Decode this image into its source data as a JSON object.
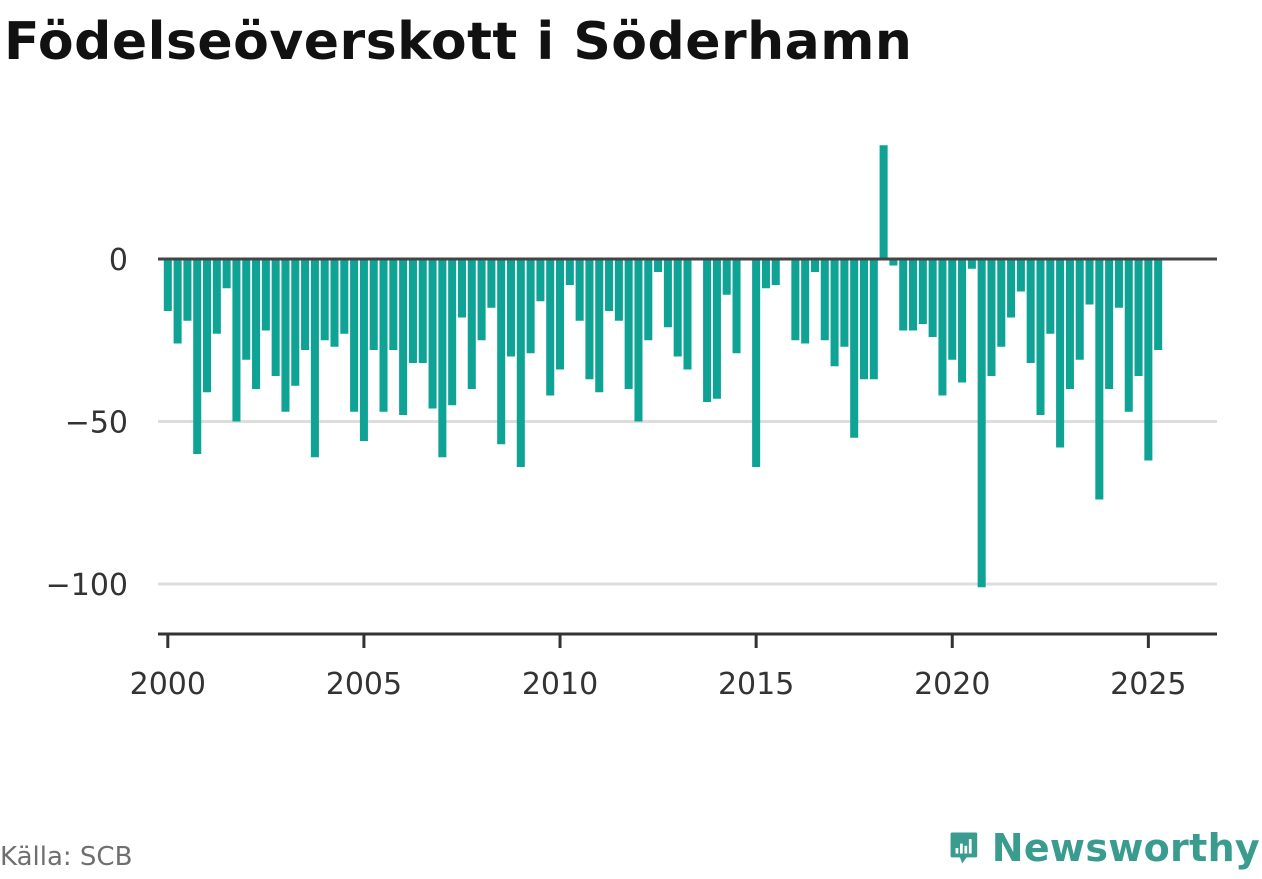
{
  "header": {
    "title": "Födelseöverskott i Söderhamn"
  },
  "footer": {
    "source": "Källa: SCB",
    "brand_name": "Newsworthy"
  },
  "colors": {
    "bar": "#0fa396",
    "brand": "#3a9b8f",
    "zero_line": "#444444",
    "grid": "#dddddd",
    "axis": "#333333"
  },
  "icons": {
    "brand_logo": "bar-chart-speech-bubble-icon"
  },
  "chart_data": {
    "type": "bar",
    "title": "Födelseöverskott i Söderhamn",
    "xlabel": "",
    "ylabel": "",
    "grid": true,
    "x_unit": "quarter",
    "xlim": [
      1999.75,
      2026.75
    ],
    "ylim": [
      -115,
      40
    ],
    "x_ticks": [
      2000,
      2005,
      2010,
      2015,
      2020,
      2025
    ],
    "x_tick_labels": [
      "2000",
      "2005",
      "2010",
      "2015",
      "2020",
      "2025"
    ],
    "y_ticks": [
      0,
      -50,
      -100
    ],
    "y_tick_labels": [
      "0",
      "−50",
      "−100"
    ],
    "x": [
      2000.0,
      2000.25,
      2000.5,
      2000.75,
      2001.0,
      2001.25,
      2001.5,
      2001.75,
      2002.0,
      2002.25,
      2002.5,
      2002.75,
      2003.0,
      2003.25,
      2003.5,
      2003.75,
      2004.0,
      2004.25,
      2004.5,
      2004.75,
      2005.0,
      2005.25,
      2005.5,
      2005.75,
      2006.0,
      2006.25,
      2006.5,
      2006.75,
      2007.0,
      2007.25,
      2007.5,
      2007.75,
      2008.0,
      2008.25,
      2008.5,
      2008.75,
      2009.0,
      2009.25,
      2009.5,
      2009.75,
      2010.0,
      2010.25,
      2010.5,
      2010.75,
      2011.0,
      2011.25,
      2011.5,
      2011.75,
      2012.0,
      2012.25,
      2012.5,
      2012.75,
      2013.0,
      2013.25,
      2013.5,
      2013.75,
      2014.0,
      2014.25,
      2014.5,
      2014.75,
      2015.0,
      2015.25,
      2015.5,
      2015.75,
      2016.0,
      2016.25,
      2016.5,
      2016.75,
      2017.0,
      2017.25,
      2017.5,
      2017.75,
      2018.0,
      2018.25,
      2018.5,
      2018.75,
      2019.0,
      2019.25,
      2019.5,
      2019.75,
      2020.0,
      2020.25,
      2020.5,
      2020.75,
      2021.0,
      2021.25,
      2021.5,
      2021.75,
      2022.0,
      2022.25,
      2022.5,
      2022.75,
      2023.0,
      2023.25,
      2023.5,
      2023.75,
      2024.0,
      2024.25,
      2024.5,
      2024.75,
      2025.0,
      2025.25
    ],
    "values": [
      -16,
      -26,
      -19,
      -60,
      -41,
      -23,
      -9,
      -50,
      -31,
      -40,
      -22,
      -36,
      -47,
      -39,
      -28,
      -61,
      -25,
      -27,
      -23,
      -47,
      -56,
      -28,
      -47,
      -28,
      -48,
      -32,
      -32,
      -46,
      -61,
      -45,
      -18,
      -40,
      -25,
      -15,
      -57,
      -30,
      -64,
      -29,
      -13,
      -42,
      -34,
      -8,
      -19,
      -37,
      -41,
      -16,
      -19,
      -40,
      -50,
      -25,
      -4,
      -21,
      -30,
      -34,
      0,
      -44,
      -43,
      -11,
      -29,
      0,
      -64,
      -9,
      -8,
      0,
      -25,
      -26,
      -4,
      -25,
      -33,
      -27,
      -55,
      -37,
      -37,
      35,
      -2,
      -22,
      -22,
      -20,
      -24,
      -42,
      -31,
      -38,
      -3,
      -101,
      -36,
      -27,
      -18,
      -10,
      -32,
      -48,
      -23,
      -58,
      -40,
      -31,
      -14,
      -74,
      -40,
      -15,
      -47,
      -36,
      -62,
      -28
    ]
  }
}
